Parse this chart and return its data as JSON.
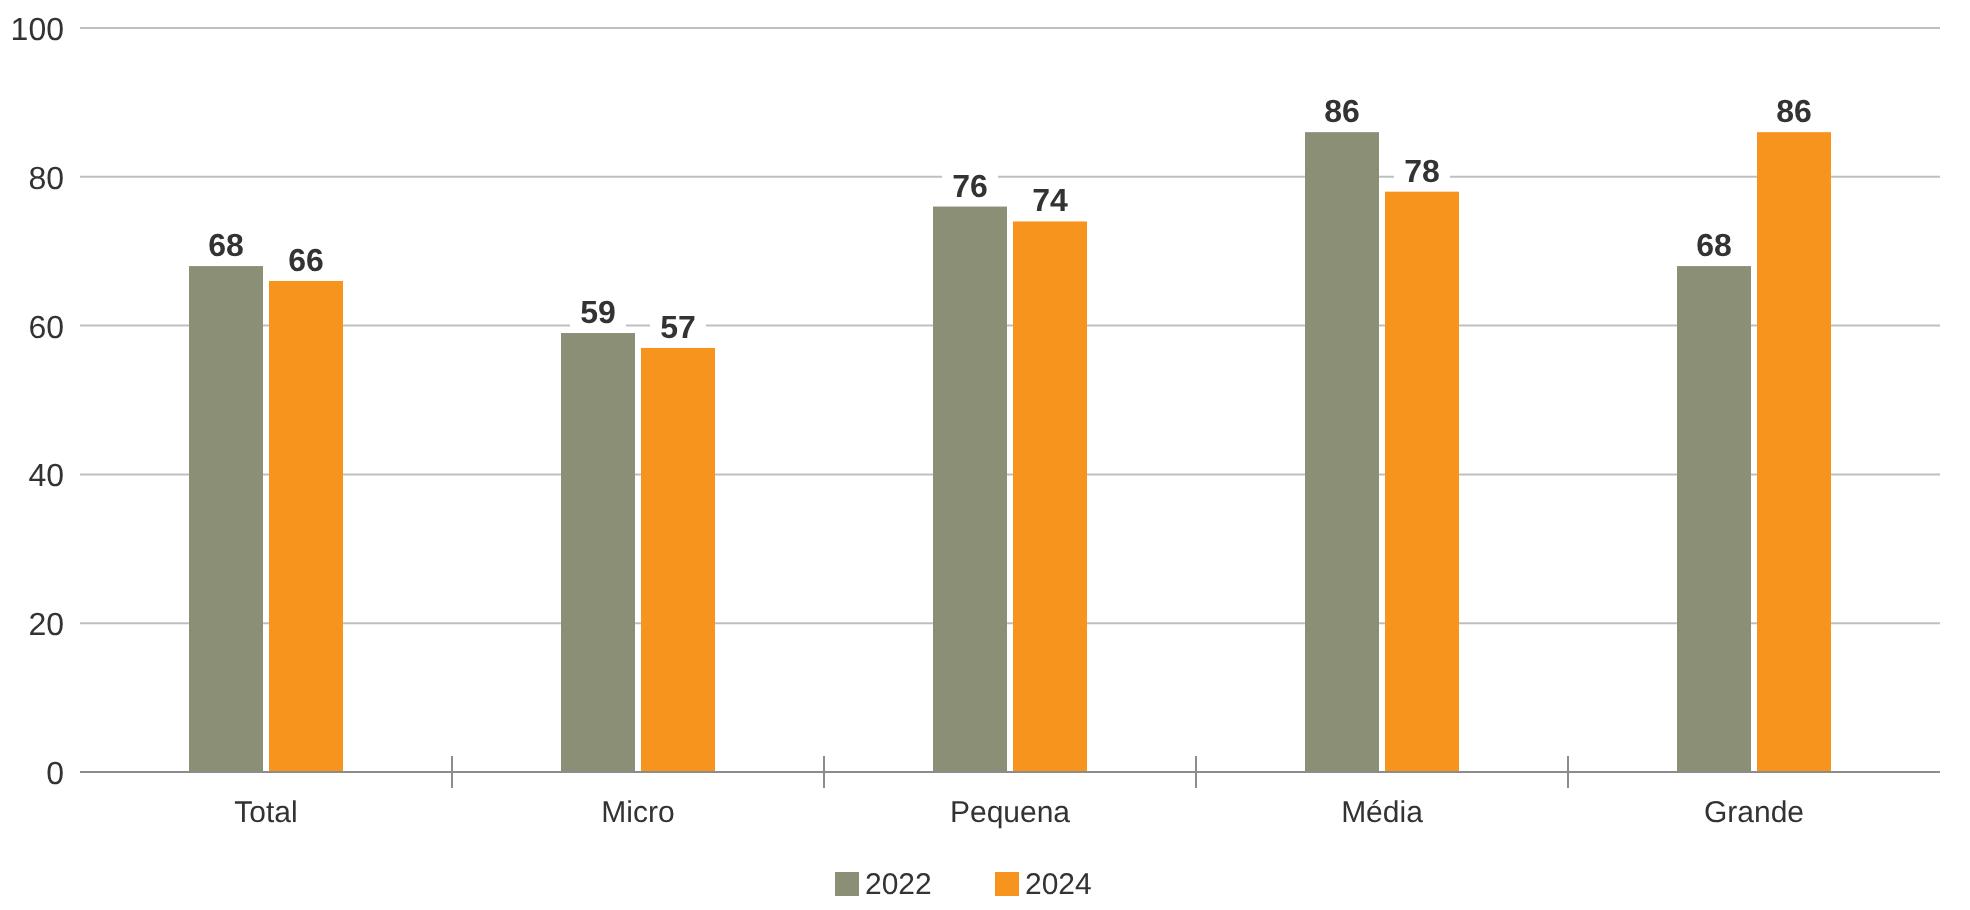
{
  "chart_data": {
    "type": "bar",
    "categories": [
      "Total",
      "Micro",
      "Pequena",
      "Média",
      "Grande"
    ],
    "series": [
      {
        "name": "2022",
        "color": "#8a8f76",
        "values": [
          68,
          59,
          76,
          86,
          68
        ]
      },
      {
        "name": "2024",
        "color": "#f7941d",
        "values": [
          66,
          57,
          74,
          78,
          86
        ]
      }
    ],
    "ylim": [
      0,
      100
    ],
    "yticks": [
      0,
      20,
      40,
      60,
      80,
      100
    ],
    "grid": "y",
    "legend": "bottom",
    "data_labels": true
  }
}
